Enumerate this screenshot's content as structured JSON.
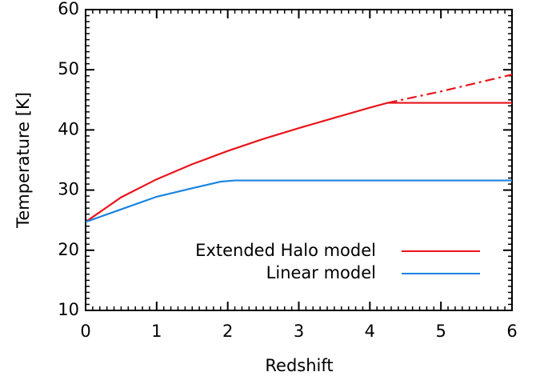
{
  "chart_data": {
    "type": "line",
    "xlabel": "Redshift",
    "ylabel": "Temperature [K]",
    "xlim": [
      0,
      6
    ],
    "xticks": [
      0,
      1,
      2,
      3,
      4,
      5,
      6
    ],
    "ylim": [
      10,
      60
    ],
    "yticks": [
      10,
      20,
      30,
      40,
      50,
      60
    ],
    "minor_divisions": 10,
    "legend": "lower right",
    "series": [
      {
        "name": "Extended Halo model",
        "color": "#e8141c",
        "style": "solid",
        "x": [
          0,
          0.5,
          1,
          1.5,
          2,
          2.5,
          3,
          3.5,
          4,
          4.25,
          6
        ],
        "values": [
          24.7,
          28.8,
          31.8,
          34.3,
          36.5,
          38.5,
          40.3,
          42.0,
          43.7,
          44.5,
          44.5
        ]
      },
      {
        "color": "#e8141c",
        "style": "dashdot",
        "x": [
          4.25,
          5,
          6
        ],
        "values": [
          44.5,
          46.4,
          49.2
        ]
      },
      {
        "name": "Linear model",
        "color": "#1a84e0",
        "style": "solid",
        "x": [
          0,
          0.5,
          1,
          1.5,
          1.9,
          2.1,
          6
        ],
        "values": [
          24.7,
          26.8,
          28.9,
          30.3,
          31.4,
          31.6,
          31.6
        ]
      }
    ]
  }
}
